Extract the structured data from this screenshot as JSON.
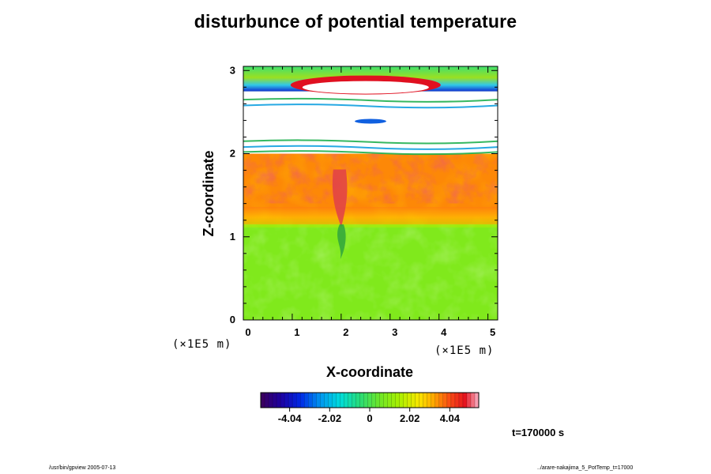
{
  "chart_data": {
    "type": "heatmap",
    "title": "disturbunce of potential temperature",
    "xlabel": "X-coordinate",
    "ylabel": "Z-coordinate",
    "x_unit": "(×1E5  m)",
    "y_unit": "(×1E5  m)",
    "xlim": [
      0,
      5.2
    ],
    "ylim": [
      0,
      3.05
    ],
    "x_ticks": [
      "0",
      "1",
      "2",
      "3",
      "4",
      "5"
    ],
    "y_ticks": [
      "0",
      "1",
      "2",
      "3"
    ],
    "colorbar": {
      "range": [
        -5.5,
        5.5
      ],
      "tick_values": [
        -4.04,
        -2.02,
        0,
        2.02,
        4.04
      ],
      "tick_labels": [
        "-4.04",
        "-2.02",
        "0",
        "2.02",
        "4.04"
      ]
    },
    "regions": [
      {
        "z_from": 0.0,
        "z_to": 1.15,
        "value": 0.8
      },
      {
        "z_from": 1.15,
        "z_to": 2.0,
        "value": 3.5
      },
      {
        "z_from": 2.0,
        "z_to": 2.55,
        "value": null
      },
      {
        "z_from": 2.75,
        "z_to": 3.05,
        "value": 0.2
      }
    ]
  },
  "time_label": "t=170000 s",
  "footer_left": "/usr/bin/gpview 2005-07-13",
  "footer_right": "../arare-nakajima_5_PotTemp_t=17000"
}
